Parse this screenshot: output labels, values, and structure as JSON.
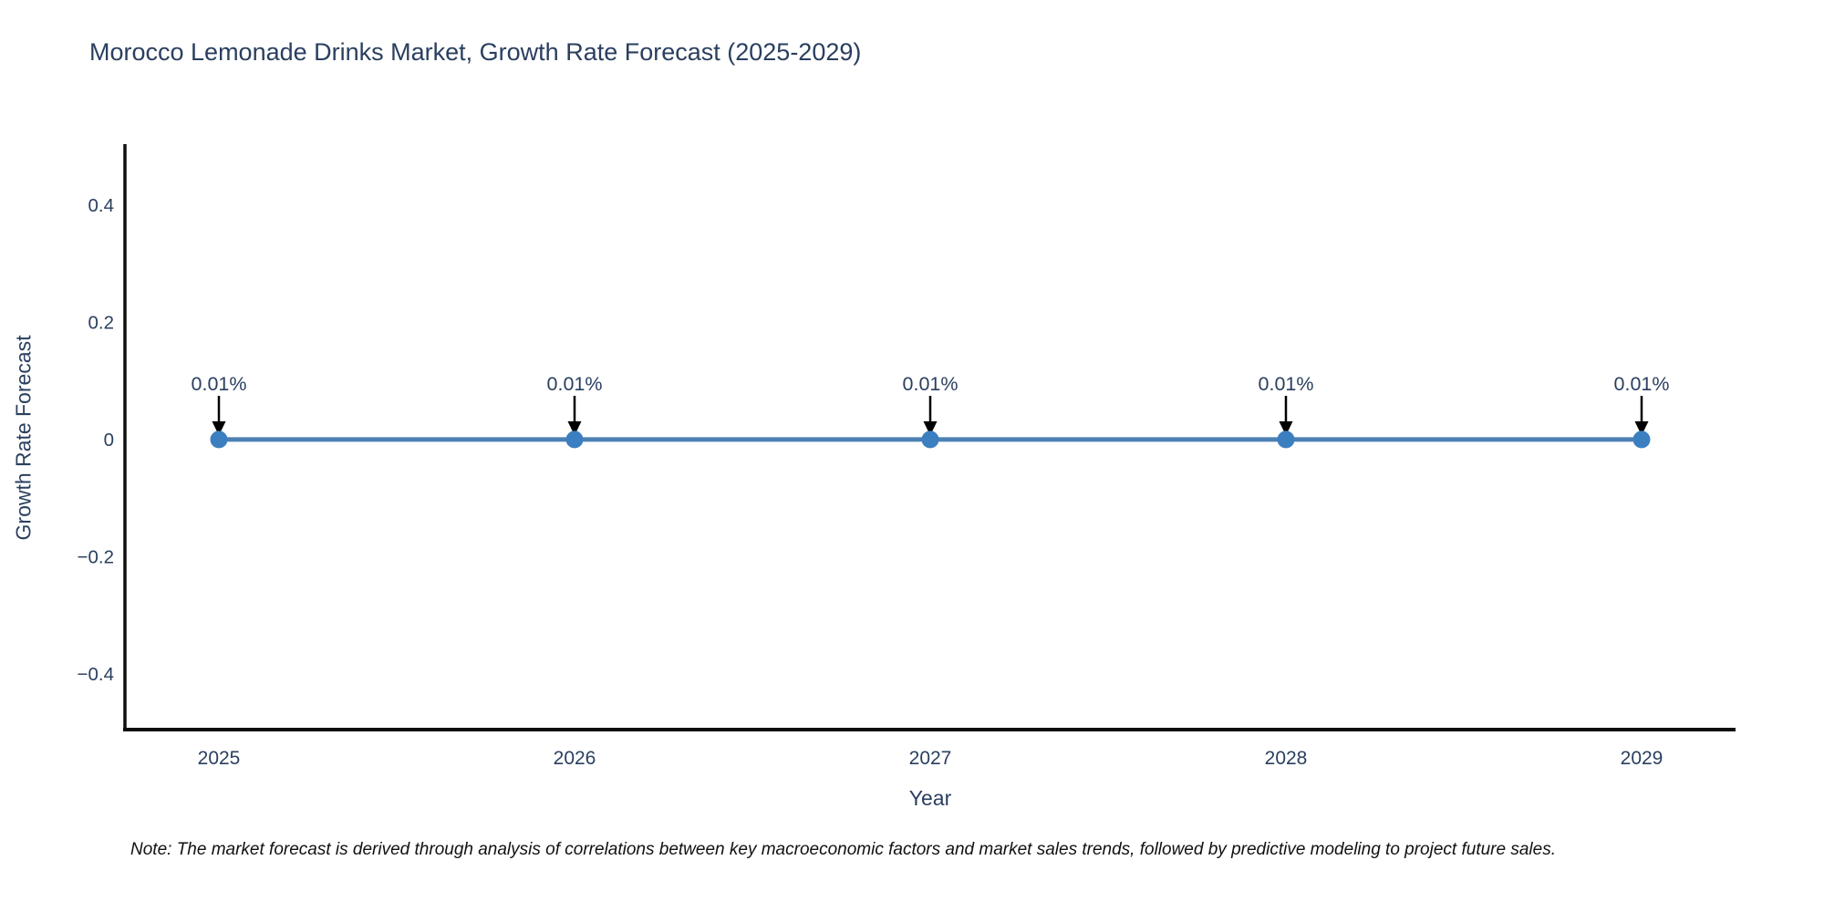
{
  "header": {
    "title": "Morocco Lemonade Drinks Market, Growth Rate Forecast (2025-2029)"
  },
  "footnote": {
    "text": "Note: The market forecast is derived through analysis of correlations between key macroeconomic factors and market sales trends, followed by predictive modeling to project future sales."
  },
  "chart_data": {
    "type": "line",
    "title": "Morocco Lemonade Drinks Market, Growth Rate Forecast (2025-2029)",
    "xlabel": "Year",
    "ylabel": "Growth Rate Forecast",
    "x": [
      2025,
      2026,
      2027,
      2028,
      2029
    ],
    "xtick_labels": [
      "2025",
      "2026",
      "2027",
      "2028",
      "2029"
    ],
    "series": [
      {
        "name": "Growth Rate Forecast",
        "values_percent": [
          0.01,
          0.01,
          0.01,
          0.01,
          0.01
        ]
      }
    ],
    "point_labels": [
      "0.01%",
      "0.01%",
      "0.01%",
      "0.01%",
      "0.01%"
    ],
    "ylim": [
      -0.5,
      0.5
    ],
    "yticks": [
      0.4,
      0.2,
      0,
      -0.2,
      -0.4
    ],
    "ytick_labels": [
      "0.4",
      "0.2",
      "0",
      "−0.2",
      "−0.4"
    ],
    "grid": false,
    "legend": "none",
    "annotation_arrows": true,
    "colors": {
      "line": "#4d80b3",
      "marker": "#3c7fc0",
      "axis": "#0f0f0f",
      "tick_text": "#2a3f5f",
      "annotation_text": "#2a3f5f",
      "arrow": "#000000",
      "title_text": "#2a3f5f",
      "background": "#ffffff"
    }
  }
}
